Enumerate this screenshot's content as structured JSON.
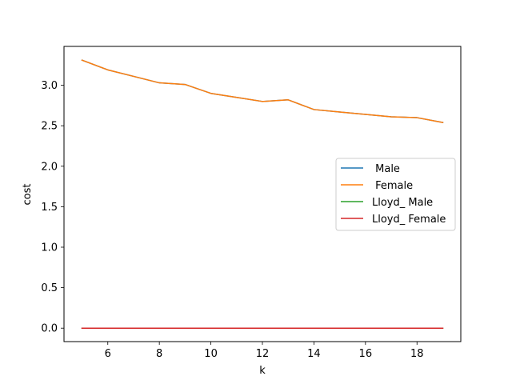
{
  "chart_data": {
    "type": "line",
    "title": "",
    "xlabel": "k",
    "ylabel": "cost",
    "xlim": [
      4.3,
      19.7
    ],
    "ylim": [
      -0.166,
      3.48
    ],
    "xticks": [
      6,
      8,
      10,
      12,
      14,
      16,
      18
    ],
    "yticks": [
      0.0,
      0.5,
      1.0,
      1.5,
      2.0,
      2.5,
      3.0
    ],
    "xtick_labels": [
      "6",
      "8",
      "10",
      "12",
      "14",
      "16",
      "18"
    ],
    "ytick_labels": [
      "0.0",
      "0.5",
      "1.0",
      "1.5",
      "2.0",
      "2.5",
      "3.0"
    ],
    "grid": false,
    "legend_position": "center-right",
    "x": [
      5,
      6,
      7,
      8,
      9,
      10,
      11,
      12,
      13,
      14,
      15,
      16,
      17,
      18,
      19
    ],
    "series": [
      {
        "name": " Male",
        "color": "#1f77b4",
        "values": [
          3.31,
          3.19,
          3.11,
          3.03,
          3.01,
          2.9,
          2.85,
          2.8,
          2.82,
          2.7,
          2.67,
          2.64,
          2.61,
          2.6,
          2.54
        ]
      },
      {
        "name": " Female",
        "color": "#ff7f0e",
        "values": [
          3.31,
          3.19,
          3.11,
          3.03,
          3.01,
          2.9,
          2.85,
          2.8,
          2.82,
          2.7,
          2.67,
          2.64,
          2.61,
          2.6,
          2.54
        ]
      },
      {
        "name": "Lloyd_ Male",
        "color": "#2ca02c",
        "values": [
          0.0,
          0.0,
          0.0,
          0.0,
          0.0,
          0.0,
          0.0,
          0.0,
          0.0,
          0.0,
          0.0,
          0.0,
          0.0,
          0.0,
          0.0
        ]
      },
      {
        "name": "Lloyd_ Female",
        "color": "#d62728",
        "values": [
          0.0,
          0.0,
          0.0,
          0.0,
          0.0,
          0.0,
          0.0,
          0.0,
          0.0,
          0.0,
          0.0,
          0.0,
          0.0,
          0.0,
          0.0
        ]
      }
    ]
  }
}
